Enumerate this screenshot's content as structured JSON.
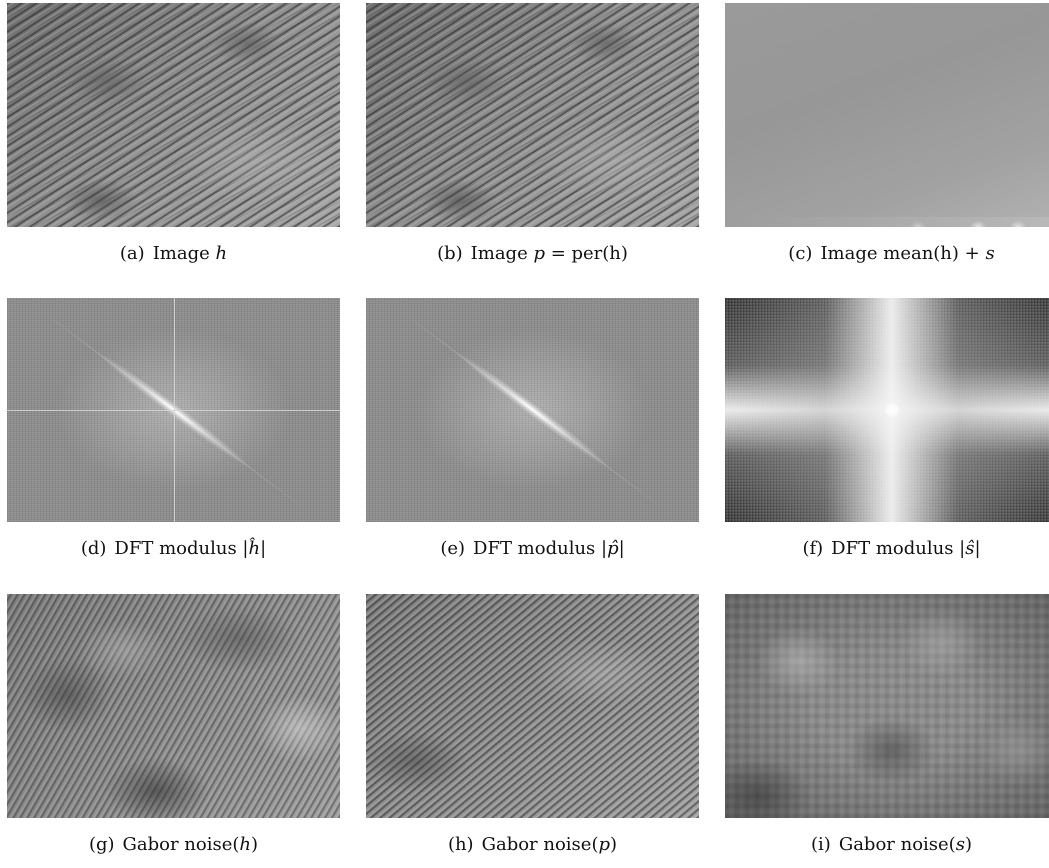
{
  "figure": {
    "panels": [
      {
        "tag": "(a)",
        "prefix": "Image ",
        "math": "h",
        "suffix": ""
      },
      {
        "tag": "(b)",
        "prefix": "Image ",
        "math": "p",
        "suffix": " = per(h)"
      },
      {
        "tag": "(c)",
        "prefix": "Image mean(h) + ",
        "math": "s",
        "suffix": ""
      },
      {
        "tag": "(d)",
        "prefix": "DFT modulus ",
        "math": "|ĥ|",
        "suffix": ""
      },
      {
        "tag": "(e)",
        "prefix": "DFT modulus ",
        "math": "|p̂|",
        "suffix": ""
      },
      {
        "tag": "(f)",
        "prefix": "DFT modulus ",
        "math": "|ŝ|",
        "suffix": ""
      },
      {
        "tag": "(g)",
        "prefix": "Gabor noise(",
        "math": "h",
        "suffix": ")"
      },
      {
        "tag": "(h)",
        "prefix": "Gabor noise(",
        "math": "p",
        "suffix": ")"
      },
      {
        "tag": "(i)",
        "prefix": "Gabor noise(",
        "math": "s",
        "suffix": ")"
      }
    ]
  }
}
